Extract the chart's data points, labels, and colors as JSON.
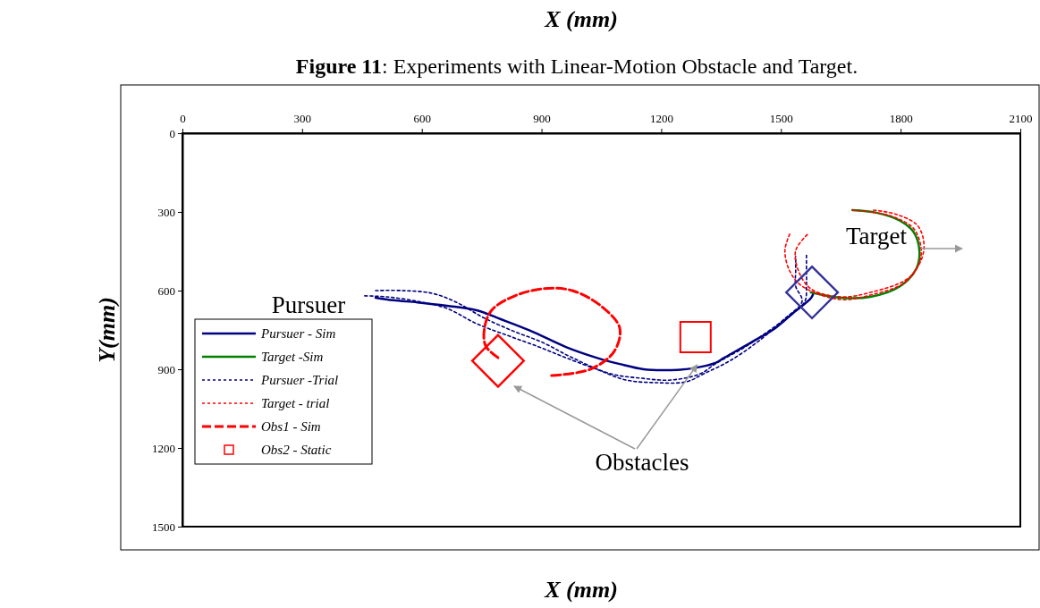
{
  "chart_data": {
    "type": "line",
    "title": "Figure 11: Experiments with Linear-Motion Obstacle and Target.",
    "xlabel": "X (mm)",
    "ylabel": "Y(mm)",
    "xlim": [
      0,
      2100
    ],
    "xticks": [
      0,
      300,
      600,
      900,
      1200,
      1500,
      1800,
      2100
    ],
    "ylim": [
      1500,
      0
    ],
    "yticks": [
      0,
      300,
      600,
      900,
      1200,
      1500
    ],
    "grid": false,
    "legend": "left",
    "annotations": [
      "X (mm)",
      "Pursuer",
      "Target",
      {
        "text": "Obstacles",
        "x": 1290,
        "y": 883
      }
    ],
    "series": [
      {
        "name": "Pursuer - Sim",
        "color": "#000080",
        "line_style": "solid",
        "marker": "none",
        "x": [
          484,
          529,
          589,
          663,
          737,
          798,
          872,
          961,
          1038,
          1096,
          1156,
          1224,
          1275,
          1336,
          1358,
          1425,
          1486,
          1531,
          1576,
          1582
        ],
        "values": [
          627,
          637,
          645,
          658,
          675,
          709,
          753,
          815,
          856,
          880,
          900,
          903,
          897,
          876,
          856,
          798,
          743,
          685,
          627,
          607
        ]
      },
      {
        "name": "Target -Sim",
        "color": "#008000",
        "line_style": "solid",
        "marker": "none",
        "x": [
          1679,
          1739,
          1799,
          1833,
          1847,
          1840,
          1799,
          1724,
          1649,
          1575
        ],
        "values": [
          293,
          303,
          334,
          378,
          447,
          515,
          583,
          624,
          627,
          607
        ]
      },
      {
        "name": "Pursuer -Trial",
        "color": "#000080",
        "line_style": "dotted",
        "marker": "none",
        "x": [
          484,
          551,
          625,
          686,
          753,
          827,
          903,
          977,
          1073,
          1150,
          1224,
          1298,
          1336,
          1410,
          1470,
          1522,
          1560,
          1564,
          1564,
          1564
        ],
        "values": [
          600,
          600,
          610,
          644,
          702,
          753,
          798,
          856,
          917,
          934,
          941,
          917,
          879,
          815,
          753,
          695,
          641,
          583,
          525,
          457
        ]
      },
      {
        "color": "#000080",
        "line_style": "dotted",
        "marker": "none",
        "x": [
          457,
          513,
          589,
          663,
          737,
          813,
          887,
          961,
          1038,
          1112,
          1186,
          1262,
          1307,
          1374,
          1448,
          1508,
          1553,
          1537,
          1537,
          1537
        ],
        "values": [
          620,
          624,
          641,
          668,
          726,
          770,
          811,
          856,
          900,
          941,
          951,
          948,
          917,
          866,
          788,
          709,
          641,
          583,
          525,
          470
        ]
      },
      {
        "name": "Target - trial",
        "color": "#ff0000",
        "line_style": "dotted",
        "marker": "none",
        "x": [
          1679,
          1724,
          1784,
          1835,
          1851,
          1813,
          1724,
          1649,
          1553,
          1522,
          1510,
          1522
        ],
        "values": [
          293,
          300,
          320,
          368,
          470,
          566,
          617,
          634,
          583,
          525,
          447,
          385
        ]
      },
      {
        "color": "#ff0000",
        "line_style": "dotted",
        "marker": "none",
        "x": [
          1732,
          1791,
          1844,
          1858,
          1822,
          1724,
          1649,
          1575,
          1544,
          1537,
          1567
        ],
        "values": [
          293,
          310,
          355,
          447,
          549,
          607,
          624,
          593,
          525,
          447,
          385
        ]
      },
      {
        "name": "Obs1 - Sim",
        "color": "#ff0000",
        "line_style": "dashed",
        "marker": "none",
        "x": [
          791,
          760,
          757,
          775,
          827,
          903,
          977,
          1051,
          1096,
          1082,
          1022,
          925
        ],
        "values": [
          856,
          811,
          743,
          675,
          624,
          593,
          600,
          661,
          743,
          832,
          900,
          924
        ]
      },
      {
        "name": "Obs2 - Static",
        "type": "scatter",
        "color": "#ff0000",
        "marker": "square",
        "x": [
          1286
        ],
        "values": [
          777
        ]
      },
      {
        "type": "scatter",
        "color": "#ff0000",
        "marker": "diamond",
        "x": [
          791
        ],
        "values": [
          868
        ]
      },
      {
        "type": "scatter",
        "color": "#333399",
        "marker": "diamond",
        "x": [
          1578
        ],
        "values": [
          607
        ]
      }
    ]
  }
}
